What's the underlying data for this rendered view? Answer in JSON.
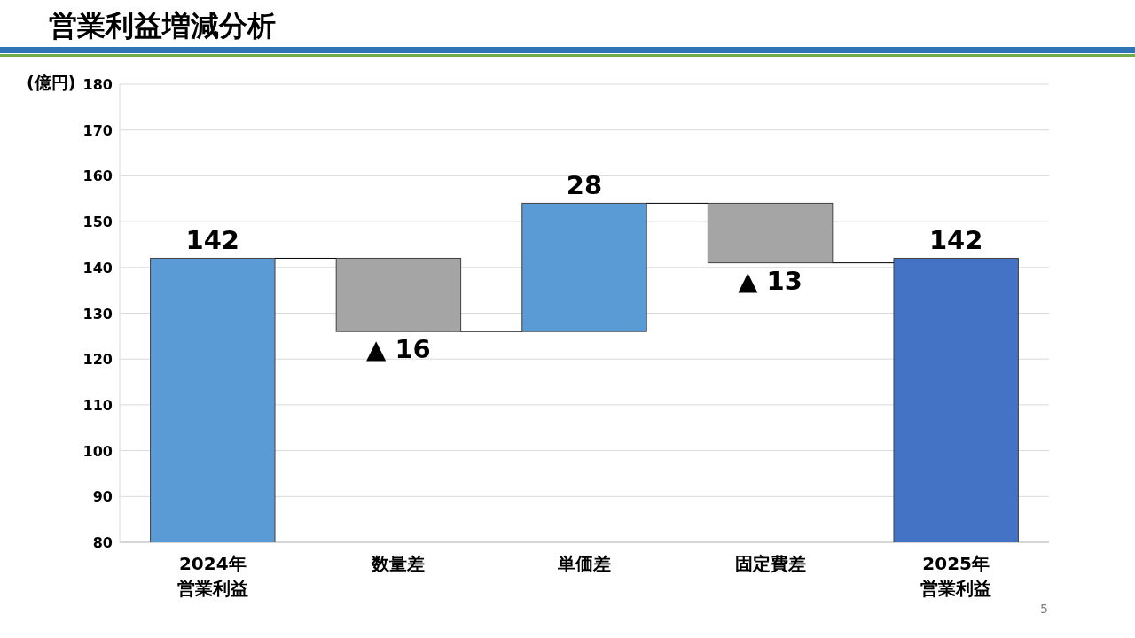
{
  "chart_data": {
    "type": "bar",
    "title": "営業利益増減分析",
    "ylabel": "(億円)",
    "categories": [
      "2024年営業利益",
      "数量差",
      "単価差",
      "固定費差",
      "2025年営業利益"
    ],
    "base": [
      0,
      142,
      126,
      154,
      0
    ],
    "values": [
      142,
      -16,
      28,
      -13,
      142
    ],
    "colors": [
      "#5b9bd5",
      "#a5a5a5",
      "#5b9bd5",
      "#a5a5a5",
      "#4472c4"
    ],
    "value_labels": [
      "142",
      "▲ 16",
      "28",
      "▲ 13",
      "142"
    ],
    "ylim": [
      80,
      180
    ],
    "yticks": [
      80,
      90,
      100,
      110,
      120,
      130,
      140,
      150,
      160,
      170,
      180
    ],
    "grid": "y",
    "annotations": [
      "5"
    ]
  }
}
